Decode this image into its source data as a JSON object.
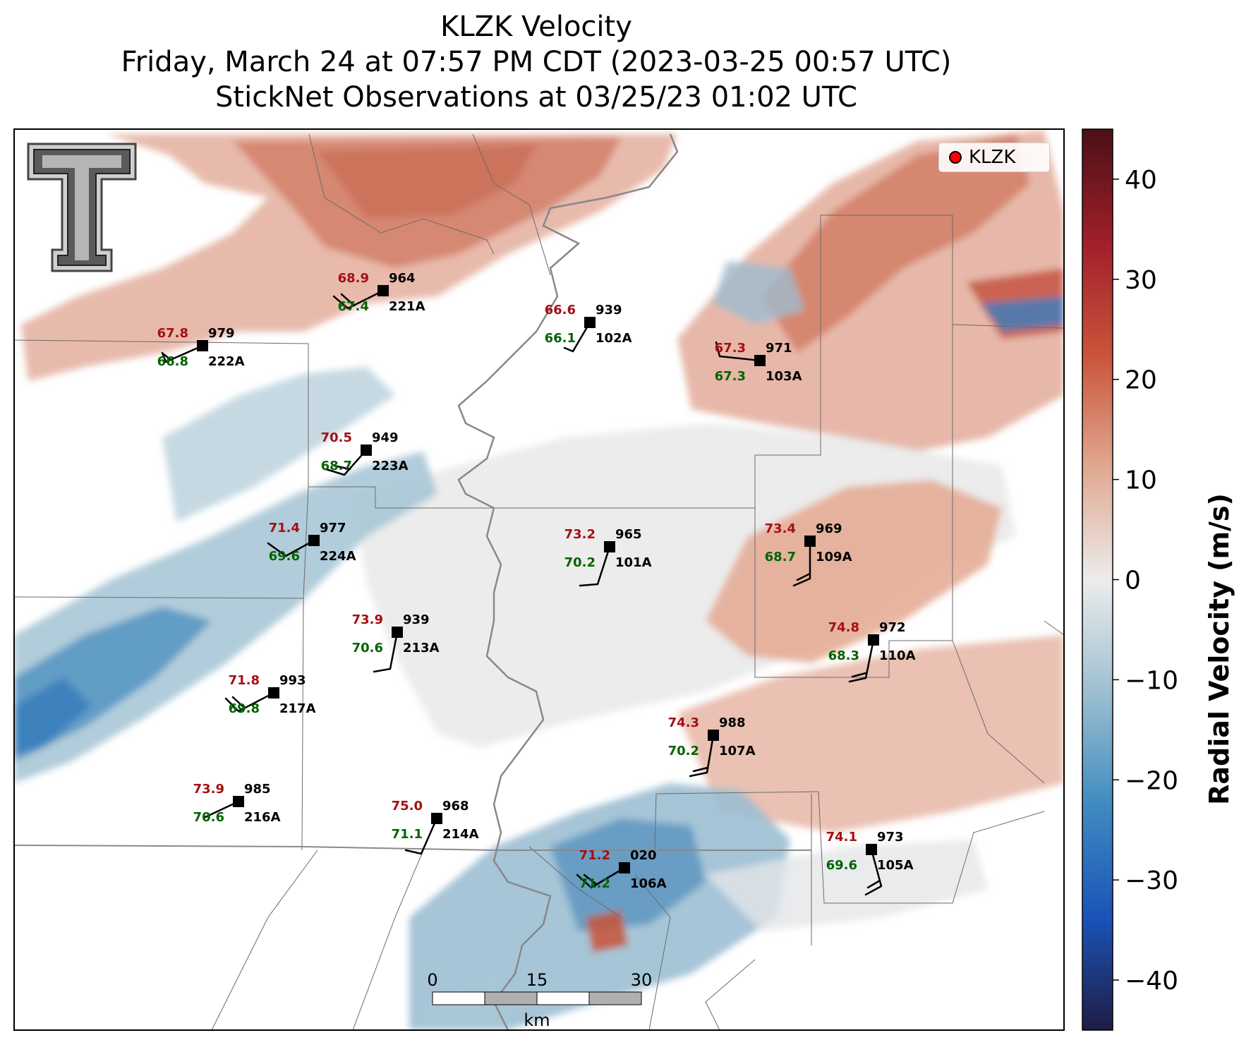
{
  "title": {
    "line1": "KLZK Velocity",
    "line2": "Friday, March 24 at 07:57 PM CDT (2023-03-25 00:57 UTC)",
    "line3": "StickNet Observations at 03/25/23 01:02 UTC"
  },
  "legend": {
    "label": "KLZK",
    "marker_color": "#ff0000"
  },
  "colorbar": {
    "label": "Radial Velocity (m/s)",
    "ticks": [
      "40",
      "30",
      "20",
      "10",
      "0",
      "−10",
      "−20",
      "−30",
      "−40"
    ],
    "range": [
      -45,
      45
    ],
    "colors": [
      "#1f1d45",
      "#1a53b8",
      "#3f8bc0",
      "#9dbfd0",
      "#ececec",
      "#e0a890",
      "#c9533a",
      "#a01f2a",
      "#4a1016"
    ]
  },
  "scalebar": {
    "ticks": [
      "0",
      "15",
      "30"
    ],
    "unit": "km"
  },
  "logo": {
    "icon": "texas-tech-double-t-logo"
  },
  "stations": [
    {
      "id": "221A",
      "temp": "68.9",
      "dew": "67.4",
      "pres": "964"
    },
    {
      "id": "222A",
      "temp": "67.8",
      "dew": "66.8",
      "pres": "979"
    },
    {
      "id": "102A",
      "temp": "66.6",
      "dew": "66.1",
      "pres": "939"
    },
    {
      "id": "103A",
      "temp": "67.3",
      "dew": "67.3",
      "pres": "971"
    },
    {
      "id": "223A",
      "temp": "70.5",
      "dew": "68.7",
      "pres": "949"
    },
    {
      "id": "224A",
      "temp": "71.4",
      "dew": "69.6",
      "pres": "977"
    },
    {
      "id": "101A",
      "temp": "73.2",
      "dew": "70.2",
      "pres": "965"
    },
    {
      "id": "109A",
      "temp": "73.4",
      "dew": "68.7",
      "pres": "969"
    },
    {
      "id": "213A",
      "temp": "73.9",
      "dew": "70.6",
      "pres": "939"
    },
    {
      "id": "110A",
      "temp": "74.8",
      "dew": "68.3",
      "pres": "972"
    },
    {
      "id": "217A",
      "temp": "71.8",
      "dew": "69.8",
      "pres": "993"
    },
    {
      "id": "107A",
      "temp": "74.3",
      "dew": "70.2",
      "pres": "988"
    },
    {
      "id": "216A",
      "temp": "73.9",
      "dew": "70.6",
      "pres": "985"
    },
    {
      "id": "214A",
      "temp": "75.0",
      "dew": "71.1",
      "pres": "968"
    },
    {
      "id": "105A",
      "temp": "74.1",
      "dew": "69.6",
      "pres": "973"
    },
    {
      "id": "106A",
      "temp": "71.2",
      "dew": "71.2",
      "pres": "020"
    }
  ]
}
